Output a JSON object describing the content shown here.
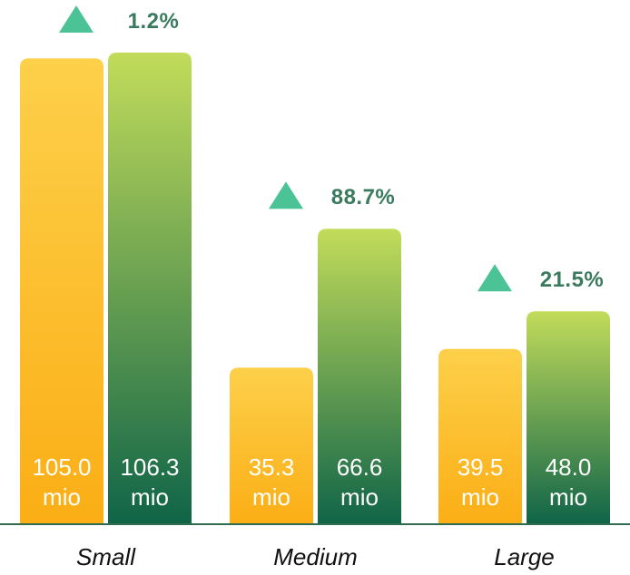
{
  "chart_data": {
    "type": "bar",
    "categories": [
      "Small",
      "Medium",
      "Large"
    ],
    "series": [
      {
        "values": [
          105.0,
          35.3,
          39.5
        ],
        "labels": [
          "105.0",
          "35.3",
          "39.5"
        ]
      },
      {
        "values": [
          106.3,
          66.6,
          48.0
        ],
        "labels": [
          "106.3",
          "66.6",
          "48.0"
        ]
      }
    ],
    "unit": "mio",
    "changes": [
      "1.2%",
      "88.7%",
      "21.5%"
    ],
    "ylim": [
      0,
      110
    ],
    "colors": {
      "series1_top": "#fdd04a",
      "series1_bottom": "#fbae15",
      "series2_top": "#c2dc5a",
      "series2_bottom": "#0f6448",
      "triangle": "#4cc396",
      "change_text": "#3a7a5e",
      "baseline": "#2f6b4f"
    }
  }
}
